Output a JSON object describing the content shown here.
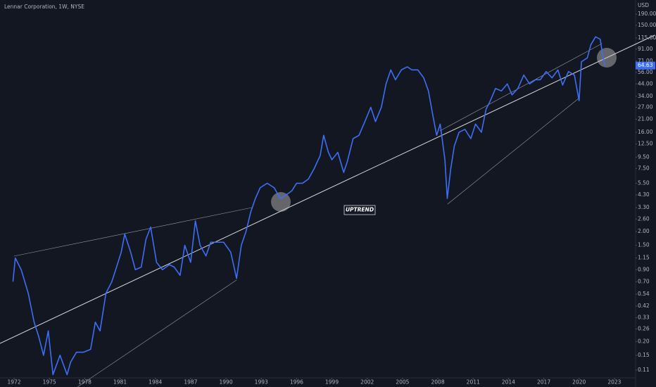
{
  "chart_data": {
    "type": "line",
    "title": "Lennar Corporation, 1W, NYSE",
    "y_unit": "USD",
    "annotation": "UPTREND",
    "last_price": 64.63,
    "color": "#3d6ef5",
    "log_scale": true,
    "grid": false,
    "xlim": [
      1970.8,
      2024.8
    ],
    "ylim": [
      0.0935,
      255
    ],
    "xticks": [
      1972,
      1975,
      1978,
      1981,
      1984,
      1987,
      1990,
      1993,
      1996,
      1999,
      2002,
      2005,
      2008,
      2011,
      2014,
      2017,
      2020,
      2023
    ],
    "yticks": [
      {
        "value": 190,
        "label": "190.00"
      },
      {
        "value": 150,
        "label": "150.00"
      },
      {
        "value": 115,
        "label": "115.00"
      },
      {
        "value": 91,
        "label": "91.00"
      },
      {
        "value": 71,
        "label": "71.00"
      },
      {
        "value": 56,
        "label": "56.00"
      },
      {
        "value": 44,
        "label": "44.00"
      },
      {
        "value": 34,
        "label": "34.00"
      },
      {
        "value": 27,
        "label": "27.00"
      },
      {
        "value": 21,
        "label": "21.00"
      },
      {
        "value": 16,
        "label": "16.00"
      },
      {
        "value": 12.5,
        "label": "12.50"
      },
      {
        "value": 9.5,
        "label": "9.50"
      },
      {
        "value": 7.5,
        "label": "7.50"
      },
      {
        "value": 5.5,
        "label": "5.50"
      },
      {
        "value": 4.3,
        "label": "4.30"
      },
      {
        "value": 3.3,
        "label": "3.30"
      },
      {
        "value": 2.6,
        "label": "2.60"
      },
      {
        "value": 2,
        "label": "2.00"
      },
      {
        "value": 1.5,
        "label": "1.50"
      },
      1.15,
      {
        "value": 0.9,
        "label": "0.90"
      },
      {
        "value": 0.7,
        "label": "0.70"
      },
      0.54,
      0.42,
      0.33,
      0.26,
      {
        "value": 0.2,
        "label": "0.20"
      },
      0.15,
      0.11
    ],
    "x": [
      1971.9,
      1972.1,
      1972.6,
      1973.2,
      1973.7,
      1974.1,
      1974.5,
      1974.9,
      1975.3,
      1975.9,
      1976.5,
      1976.8,
      1977.3,
      1977.9,
      1978.5,
      1978.9,
      1979.3,
      1979.8,
      1980.3,
      1980.7,
      1981.1,
      1981.4,
      1981.9,
      1982.3,
      1982.8,
      1983.2,
      1983.6,
      1984.1,
      1984.6,
      1985.2,
      1985.6,
      1986.1,
      1986.5,
      1987.0,
      1987.4,
      1987.8,
      1988.3,
      1988.7,
      1989.3,
      1989.8,
      1990.4,
      1990.9,
      1991.3,
      1991.7,
      1992.1,
      1992.5,
      1992.9,
      1993.5,
      1994.1,
      1994.6,
      1995.1,
      1995.6,
      1996.0,
      1996.5,
      1997.0,
      1997.5,
      1998.0,
      1998.3,
      1998.7,
      1999.0,
      1999.5,
      2000.0,
      2000.3,
      2000.8,
      2001.3,
      2001.8,
      2002.3,
      2002.7,
      2003.2,
      2003.6,
      2004.0,
      2004.4,
      2004.9,
      2005.4,
      2005.8,
      2006.3,
      2006.8,
      2007.2,
      2007.6,
      2007.9,
      2008.2,
      2008.6,
      2008.8,
      2009.1,
      2009.4,
      2009.8,
      2010.3,
      2010.8,
      2011.2,
      2011.7,
      2012.1,
      2012.4,
      2012.9,
      2013.4,
      2013.9,
      2014.3,
      2014.8,
      2015.3,
      2015.8,
      2016.3,
      2016.7,
      2017.2,
      2017.7,
      2018.2,
      2018.6,
      2019.1,
      2019.6,
      2020.0,
      2020.2,
      2020.7,
      2021.0,
      2021.4,
      2021.8,
      2022.0,
      2022.2
    ],
    "values": [
      0.7,
      1.15,
      0.9,
      0.55,
      0.3,
      0.22,
      0.15,
      0.25,
      0.1,
      0.15,
      0.1,
      0.13,
      0.16,
      0.16,
      0.17,
      0.3,
      0.25,
      0.55,
      0.7,
      0.95,
      1.3,
      1.9,
      1.3,
      0.9,
      0.95,
      1.7,
      2.2,
      1.05,
      0.9,
      1.0,
      0.95,
      0.8,
      1.5,
      1.05,
      2.5,
      1.5,
      1.2,
      1.6,
      1.6,
      1.6,
      1.3,
      0.75,
      1.5,
      2.0,
      3.0,
      4.0,
      5.0,
      5.5,
      5.0,
      4.0,
      4.3,
      4.7,
      5.5,
      5.5,
      6.0,
      7.5,
      9.8,
      15,
      10.5,
      9.0,
      10.5,
      6.9,
      8.6,
      14,
      15,
      20,
      27,
      20,
      27,
      44,
      59,
      48,
      59,
      63,
      59,
      59,
      50,
      38,
      22,
      15,
      19,
      9,
      4.0,
      7.5,
      12,
      16,
      17,
      14,
      19,
      16,
      26,
      30,
      40,
      38,
      44,
      35,
      40,
      53,
      44,
      48,
      48,
      57,
      50,
      59,
      43,
      57,
      53,
      31,
      70,
      76,
      100,
      118,
      112,
      80,
      64.63
    ]
  }
}
